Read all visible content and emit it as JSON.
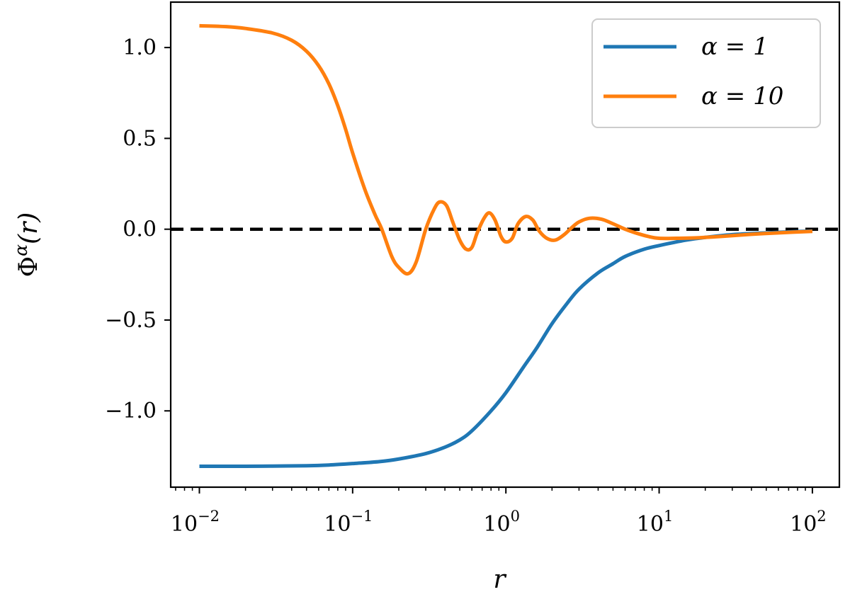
{
  "chart_data": {
    "type": "line",
    "xscale": "log",
    "xlim": [
      0.0065,
      150
    ],
    "ylim": [
      -1.42,
      1.25
    ],
    "xlabel": "r",
    "ylabel": "Φ^α(r)",
    "grid": false,
    "legend_position": "top-right",
    "x_ticks": [
      {
        "value": 0.01,
        "base": "10",
        "exp": "−2"
      },
      {
        "value": 0.1,
        "base": "10",
        "exp": "−1"
      },
      {
        "value": 1,
        "base": "10",
        "exp": "0"
      },
      {
        "value": 10,
        "base": "10",
        "exp": "1"
      },
      {
        "value": 100,
        "base": "10",
        "exp": "2"
      }
    ],
    "y_ticks": [
      {
        "value": 1.0,
        "label": "1.0"
      },
      {
        "value": 0.5,
        "label": "0.5"
      },
      {
        "value": 0.0,
        "label": "0.0"
      },
      {
        "value": -0.5,
        "label": "−0.5"
      },
      {
        "value": -1.0,
        "label": "−1.0"
      }
    ],
    "reference_line": {
      "y": 0,
      "style": "dashed",
      "color": "#000000"
    },
    "series": [
      {
        "name": "α = 1",
        "color": "#1f77b4",
        "x": [
          0.01,
          0.02,
          0.03,
          0.05,
          0.07,
          0.1,
          0.15,
          0.2,
          0.3,
          0.4,
          0.5,
          0.6,
          0.8,
          1.0,
          1.3,
          1.6,
          2.0,
          2.5,
          3.0,
          4.0,
          5.0,
          6.0,
          8.0,
          10,
          15,
          20,
          30,
          50,
          70,
          100
        ],
        "y": [
          -1.305,
          -1.305,
          -1.304,
          -1.302,
          -1.298,
          -1.29,
          -1.279,
          -1.265,
          -1.235,
          -1.2,
          -1.16,
          -1.11,
          -1.0,
          -0.9,
          -0.76,
          -0.65,
          -0.52,
          -0.41,
          -0.33,
          -0.24,
          -0.19,
          -0.15,
          -0.11,
          -0.09,
          -0.06,
          -0.045,
          -0.03,
          -0.02,
          -0.015,
          -0.01
        ]
      },
      {
        "name": "α = 10",
        "color": "#ff7f0e",
        "x": [
          0.01,
          0.015,
          0.02,
          0.03,
          0.04,
          0.05,
          0.06,
          0.07,
          0.08,
          0.09,
          0.1,
          0.12,
          0.14,
          0.155,
          0.18,
          0.2,
          0.23,
          0.26,
          0.3,
          0.34,
          0.37,
          0.41,
          0.45,
          0.5,
          0.55,
          0.6,
          0.65,
          0.72,
          0.78,
          0.85,
          0.93,
          1.0,
          1.1,
          1.2,
          1.35,
          1.5,
          1.65,
          1.85,
          2.1,
          2.4,
          2.7,
          3.0,
          3.5,
          4.2,
          5.0,
          6.0,
          7.0,
          8.5,
          10,
          13,
          17,
          25,
          40,
          60,
          100
        ],
        "y": [
          1.12,
          1.115,
          1.105,
          1.08,
          1.04,
          0.98,
          0.9,
          0.8,
          0.68,
          0.55,
          0.42,
          0.22,
          0.08,
          0.0,
          -0.15,
          -0.21,
          -0.245,
          -0.18,
          0.0,
          0.11,
          0.15,
          0.13,
          0.04,
          -0.06,
          -0.11,
          -0.1,
          -0.02,
          0.06,
          0.09,
          0.05,
          -0.04,
          -0.07,
          -0.05,
          0.03,
          0.07,
          0.05,
          -0.01,
          -0.05,
          -0.06,
          -0.03,
          0.01,
          0.04,
          0.06,
          0.055,
          0.03,
          0.0,
          -0.02,
          -0.04,
          -0.05,
          -0.05,
          -0.048,
          -0.04,
          -0.028,
          -0.02,
          -0.012
        ]
      }
    ]
  }
}
